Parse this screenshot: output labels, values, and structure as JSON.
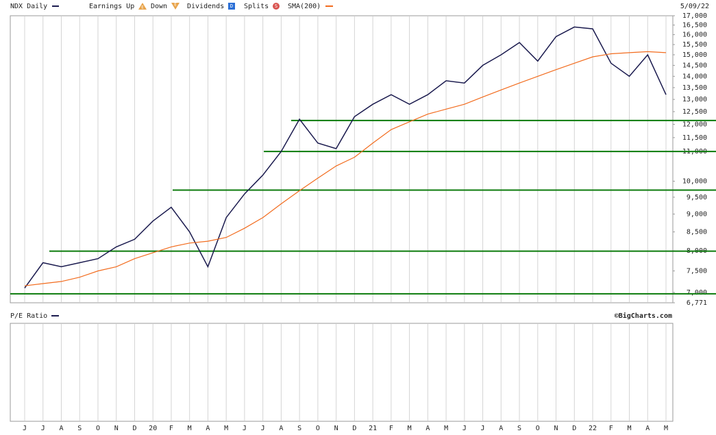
{
  "chart_data": {
    "type": "line",
    "title": "NDX Daily",
    "date": "5/09/22",
    "legend": {
      "earnings_up": "Earnings Up",
      "earnings_up_icon": "E",
      "down": "Down",
      "down_icon": "E",
      "dividends": "Dividends",
      "dividends_icon": "D",
      "splits": "Splits",
      "splits_icon": "S"
    },
    "lower_panel_title": "P/E Ratio",
    "credit": "©BigCharts.com",
    "log_scale": true,
    "categories": [
      "J",
      "J",
      "A",
      "S",
      "O",
      "N",
      "D",
      "20",
      "F",
      "M",
      "A",
      "M",
      "J",
      "J",
      "A",
      "S",
      "O",
      "N",
      "D",
      "21",
      "F",
      "M",
      "A",
      "M",
      "J",
      "J",
      "A",
      "S",
      "O",
      "N",
      "D",
      "22",
      "F",
      "M",
      "A",
      "M"
    ],
    "series": [
      {
        "name": "NDX Daily",
        "color": "#1a1a4e",
        "values": [
          7100,
          7700,
          7600,
          7700,
          7800,
          8100,
          8300,
          8800,
          9200,
          8500,
          7600,
          8900,
          9600,
          10200,
          11000,
          12200,
          11300,
          11100,
          12300,
          12800,
          13200,
          12800,
          13200,
          13800,
          13700,
          14500,
          15000,
          15600,
          14700,
          15900,
          16400,
          16300,
          14600,
          14000,
          15000,
          13200
        ]
      },
      {
        "name": "SMA(200)",
        "color": "#f26b1d",
        "values": [
          7150,
          7200,
          7250,
          7350,
          7500,
          7600,
          7800,
          7950,
          8100,
          8200,
          8250,
          8350,
          8600,
          8900,
          9300,
          9700,
          10100,
          10500,
          10800,
          11300,
          11800,
          12100,
          12400,
          12600,
          12800,
          13100,
          13400,
          13700,
          14000,
          14300,
          14600,
          14900,
          15050,
          15100,
          15150,
          15100
        ]
      }
    ],
    "levels": [
      12150,
      11000,
      9720,
      7990,
      6970
    ],
    "level_color": "#0a7a0a",
    "ylim": [
      6771,
      17000
    ],
    "yticks": [
      {
        "value": 6771,
        "label": "6,771"
      },
      {
        "value": 7000,
        "label": "7,000"
      },
      {
        "value": 7500,
        "label": "7,500"
      },
      {
        "value": 8000,
        "label": "8,000"
      },
      {
        "value": 8500,
        "label": "8,500"
      },
      {
        "value": 9000,
        "label": "9,000"
      },
      {
        "value": 9500,
        "label": "9,500"
      },
      {
        "value": 10000,
        "label": "10,000"
      },
      {
        "value": 11000,
        "label": "11,000"
      },
      {
        "value": 11500,
        "label": "11,500"
      },
      {
        "value": 12000,
        "label": "12,000"
      },
      {
        "value": 12500,
        "label": "12,500"
      },
      {
        "value": 13000,
        "label": "13,000"
      },
      {
        "value": 13500,
        "label": "13,500"
      },
      {
        "value": 14000,
        "label": "14,000"
      },
      {
        "value": 14500,
        "label": "14,500"
      },
      {
        "value": 15000,
        "label": "15,000"
      },
      {
        "value": 15500,
        "label": "15,500"
      },
      {
        "value": 16000,
        "label": "16,000"
      },
      {
        "value": 16500,
        "label": "16,500"
      },
      {
        "value": 17000,
        "label": "17,000"
      }
    ],
    "grid": true
  }
}
